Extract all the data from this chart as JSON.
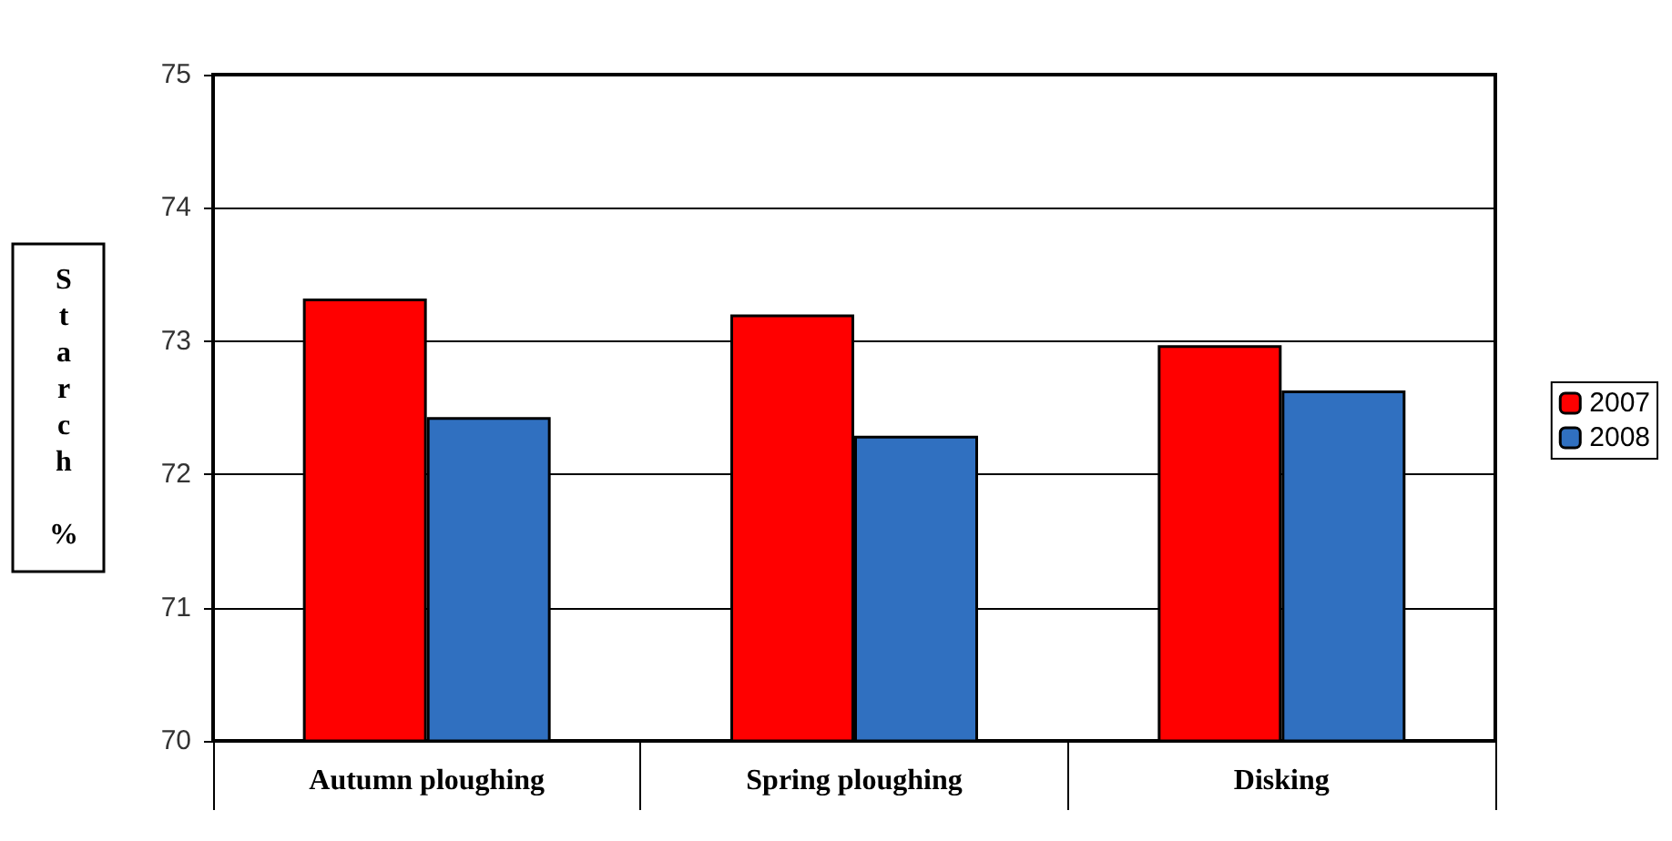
{
  "chart_data": {
    "type": "bar",
    "ylabel": "Starch %",
    "categories": [
      "Autumn ploughing",
      "Spring ploughing",
      "Disking"
    ],
    "series": [
      {
        "name": "2007",
        "color": "#ff0000",
        "values": [
          73.32,
          73.2,
          72.97
        ]
      },
      {
        "name": "2008",
        "color": "#3070c0",
        "values": [
          72.43,
          72.29,
          72.63
        ]
      }
    ],
    "ylim": [
      70,
      75
    ],
    "yticks": [
      70,
      71,
      72,
      73,
      74,
      75
    ],
    "grid": "y",
    "legend": "right"
  }
}
